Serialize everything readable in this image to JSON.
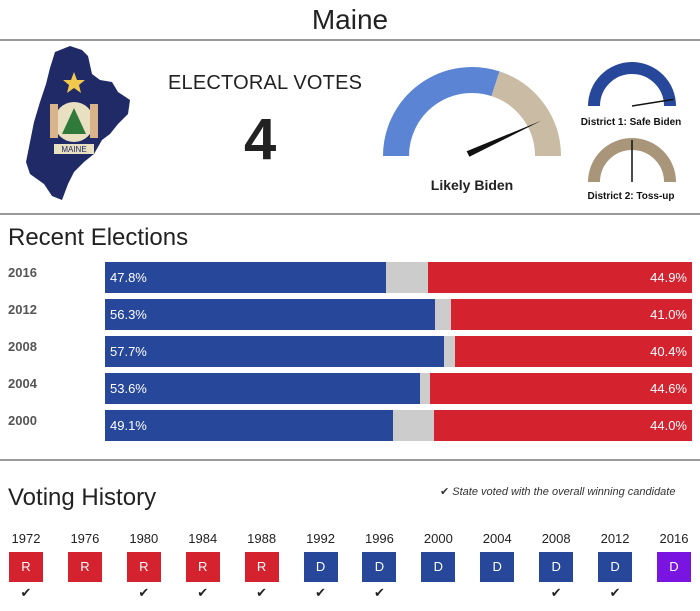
{
  "header": {
    "title": "Maine"
  },
  "electoral": {
    "label": "ELECTORAL VOTES",
    "count": "4"
  },
  "rating": {
    "label": "Likely Biden",
    "level": 0.85,
    "dem_color": "#5b84d4",
    "rep_color": "#c9bba4"
  },
  "districts": [
    {
      "label": "District 1: Safe Biden",
      "color": "#27479a",
      "level": 0.95
    },
    {
      "label": "District 2: Toss-up",
      "color": "#a8957a",
      "level": 0.5
    }
  ],
  "recent": {
    "heading": "Recent Elections",
    "colors": {
      "dem": "#27479a",
      "other": "#cccccc",
      "rep": "#d4222f"
    },
    "rows": [
      {
        "year": "2016",
        "dem": 47.8,
        "rep": 44.9,
        "dem_label": "47.8%",
        "rep_label": "44.9%"
      },
      {
        "year": "2012",
        "dem": 56.3,
        "rep": 41.0,
        "dem_label": "56.3%",
        "rep_label": "41.0%"
      },
      {
        "year": "2008",
        "dem": 57.7,
        "rep": 40.4,
        "dem_label": "57.7%",
        "rep_label": "40.4%"
      },
      {
        "year": "2004",
        "dem": 53.6,
        "rep": 44.6,
        "dem_label": "53.6%",
        "rep_label": "44.6%"
      },
      {
        "year": "2000",
        "dem": 49.1,
        "rep": 44.0,
        "dem_label": "49.1%",
        "rep_label": "44.0%"
      }
    ]
  },
  "history": {
    "heading": "Voting History",
    "legend": "State voted with the overall winning candidate",
    "colors": {
      "R": "#d4222f",
      "D": "#27479a",
      "D2016": "#7a14e0"
    },
    "items": [
      {
        "year": "1972",
        "party": "R",
        "winner": true
      },
      {
        "year": "1976",
        "party": "R",
        "winner": false
      },
      {
        "year": "1980",
        "party": "R",
        "winner": true
      },
      {
        "year": "1984",
        "party": "R",
        "winner": true
      },
      {
        "year": "1988",
        "party": "R",
        "winner": true
      },
      {
        "year": "1992",
        "party": "D",
        "winner": true
      },
      {
        "year": "1996",
        "party": "D",
        "winner": true
      },
      {
        "year": "2000",
        "party": "D",
        "winner": false
      },
      {
        "year": "2004",
        "party": "D",
        "winner": false
      },
      {
        "year": "2008",
        "party": "D",
        "winner": true
      },
      {
        "year": "2012",
        "party": "D",
        "winner": true
      },
      {
        "year": "2016",
        "party": "D",
        "winner": false
      }
    ]
  },
  "state_outline": {
    "fill": "#1f2a66",
    "seal_text": "MAINE"
  }
}
